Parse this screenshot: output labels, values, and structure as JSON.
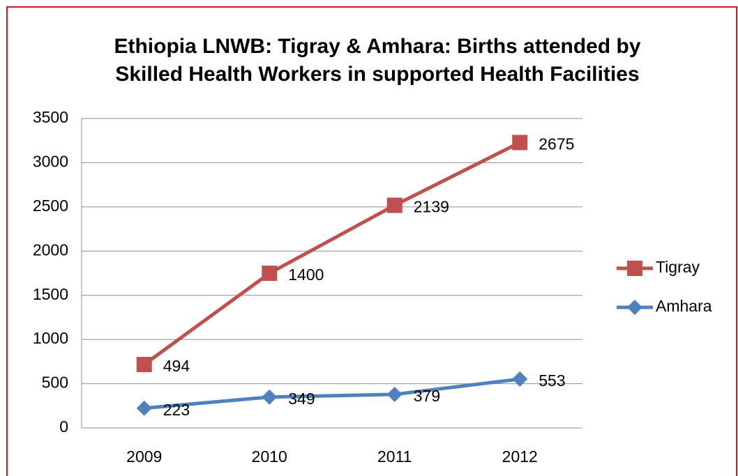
{
  "chart_data": {
    "type": "stacked_line",
    "title": [
      "Ethiopia LNWB: Tigray & Amhara:  Births attended by",
      "Skilled Health Workers in supported Health Facilities"
    ],
    "categories": [
      "2009",
      "2010",
      "2011",
      "2012"
    ],
    "series": [
      {
        "name": "Amhara",
        "color": "#4f81bd",
        "marker": "diamond",
        "values": [
          223,
          349,
          379,
          553
        ]
      },
      {
        "name": "Tigray",
        "color": "#c0504d",
        "marker": "square",
        "values": [
          494,
          1400,
          2139,
          2675
        ]
      }
    ],
    "ylim": [
      0,
      3500
    ],
    "yticks": [
      0,
      500,
      1000,
      1500,
      2000,
      2500,
      3000,
      3500
    ],
    "grid": true,
    "legend": "right"
  }
}
